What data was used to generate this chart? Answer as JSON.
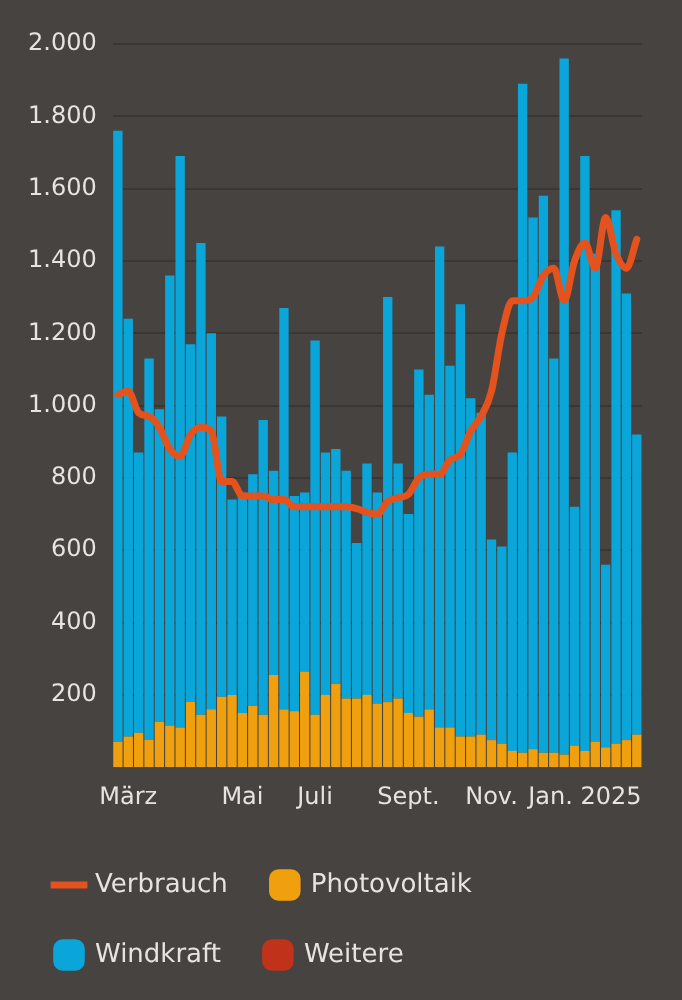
{
  "chart_data": {
    "type": "bar",
    "stacked": true,
    "grid": "y",
    "legend": "bottom",
    "marker": "none",
    "categories": [
      null,
      "März",
      null,
      null,
      null,
      null,
      null,
      null,
      null,
      null,
      null,
      null,
      "Mai",
      null,
      null,
      null,
      null,
      null,
      null,
      "Juli",
      null,
      null,
      null,
      null,
      null,
      null,
      null,
      null,
      "Sept.",
      null,
      null,
      null,
      null,
      null,
      null,
      null,
      "Nov.",
      null,
      null,
      null,
      null,
      null,
      null,
      null,
      null,
      "Jan. 2025",
      null,
      null,
      null,
      null,
      null
    ],
    "ylim": [
      0,
      2000
    ],
    "yticks": [
      200,
      400,
      600,
      800,
      {
        "value": 1000,
        "label": "1.000"
      },
      {
        "value": 1200,
        "label": "1.200"
      },
      {
        "value": 1400,
        "label": "1.400"
      },
      {
        "value": 1600,
        "label": "1.600"
      },
      {
        "value": 1800,
        "label": "1.800"
      },
      {
        "value": 2000,
        "label": "2.000"
      }
    ],
    "series": [
      {
        "name": "Verbrauch",
        "type": "line",
        "color": "#e4521e",
        "values": [
          1030,
          1040,
          980,
          970,
          940,
          880,
          860,
          920,
          940,
          930,
          790,
          790,
          750,
          750,
          750,
          740,
          740,
          720,
          720,
          720,
          720,
          720,
          720,
          715,
          705,
          700,
          735,
          745,
          755,
          800,
          810,
          810,
          850,
          865,
          930,
          970,
          1040,
          1200,
          1290,
          1290,
          1300,
          1360,
          1380,
          1290,
          1400,
          1450,
          1380,
          1520,
          1420,
          1380,
          1460
        ]
      },
      {
        "name": "Photovoltaik",
        "color": "#f0a00e",
        "values": [
          70,
          85,
          95,
          75,
          125,
          115,
          110,
          180,
          145,
          160,
          195,
          200,
          150,
          170,
          145,
          255,
          160,
          155,
          265,
          145,
          200,
          230,
          190,
          190,
          200,
          175,
          180,
          190,
          150,
          140,
          160,
          110,
          110,
          85,
          85,
          90,
          75,
          65,
          45,
          40,
          50,
          40,
          40,
          35,
          60,
          45,
          70,
          55,
          65,
          75,
          90
        ]
      },
      {
        "name": "Windkraft",
        "color": "#0ba6d9",
        "values": [
          1690,
          1155,
          775,
          1055,
          865,
          1245,
          1580,
          990,
          1305,
          1040,
          775,
          540,
          610,
          640,
          815,
          565,
          1110,
          595,
          495,
          1035,
          670,
          650,
          630,
          430,
          640,
          585,
          1120,
          650,
          550,
          960,
          870,
          1330,
          1000,
          1195,
          935,
          890,
          555,
          545,
          825,
          1850,
          1470,
          1540,
          1090,
          1925,
          660,
          1645,
          1350,
          505,
          1475,
          1235,
          830
        ]
      },
      {
        "name": "Weitere",
        "color": "#c1321b",
        "values": [
          0,
          0,
          0,
          0,
          0,
          0,
          0,
          0,
          0,
          0,
          0,
          0,
          0,
          0,
          0,
          0,
          0,
          0,
          0,
          0,
          0,
          0,
          0,
          0,
          0,
          0,
          0,
          0,
          0,
          0,
          0,
          0,
          0,
          0,
          0,
          0,
          0,
          0,
          0,
          0,
          0,
          0,
          0,
          0,
          0,
          0,
          0,
          0,
          0,
          0,
          0
        ]
      }
    ]
  }
}
